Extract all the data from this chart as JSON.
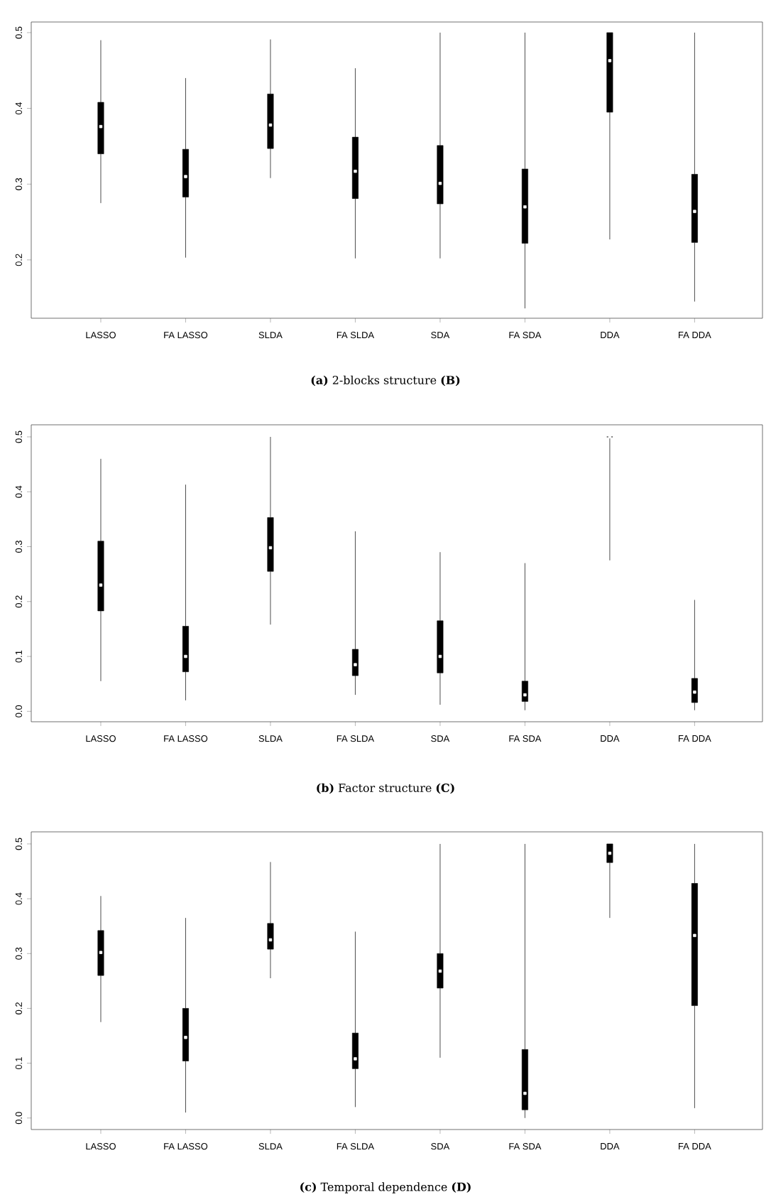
{
  "chart_data": [
    {
      "type": "box",
      "title": "**(a)** 2-blocks structure **(B)**",
      "categories": [
        "LASSO",
        "FA LASSO",
        "SLDA",
        "FA SLDA",
        "SDA",
        "FA SDA",
        "DDA",
        "FA DDA"
      ],
      "ylim": [
        0.123,
        0.514
      ],
      "yticks": [
        0.2,
        0.3,
        0.4,
        0.5
      ],
      "boxes": [
        {
          "low": 0.275,
          "q1": 0.34,
          "median": 0.376,
          "q3": 0.408,
          "high": 0.49
        },
        {
          "low": 0.203,
          "q1": 0.283,
          "median": 0.31,
          "q3": 0.346,
          "high": 0.44
        },
        {
          "low": 0.308,
          "q1": 0.347,
          "median": 0.378,
          "q3": 0.419,
          "high": 0.491
        },
        {
          "low": 0.202,
          "q1": 0.281,
          "median": 0.317,
          "q3": 0.362,
          "high": 0.453
        },
        {
          "low": 0.202,
          "q1": 0.274,
          "median": 0.301,
          "q3": 0.351,
          "high": 0.5
        },
        {
          "low": 0.136,
          "q1": 0.222,
          "median": 0.27,
          "q3": 0.32,
          "high": 0.5
        },
        {
          "low": 0.227,
          "q1": 0.395,
          "median": 0.463,
          "q3": 0.5,
          "high": 0.5
        },
        {
          "low": 0.145,
          "q1": 0.223,
          "median": 0.264,
          "q3": 0.313,
          "high": 0.5
        }
      ]
    },
    {
      "type": "box",
      "title": "**(b)** Factor structure **(C)**",
      "categories": [
        "LASSO",
        "FA LASSO",
        "SLDA",
        "FA SLDA",
        "SDA",
        "FA SDA",
        "DDA",
        "FA DDA"
      ],
      "ylim": [
        -0.019,
        0.522
      ],
      "yticks": [
        {
          "value": 0,
          "label": "0.0"
        },
        0.1,
        0.2,
        0.3,
        0.4,
        0.5
      ],
      "boxes": [
        {
          "low": 0.055,
          "q1": 0.183,
          "median": 0.23,
          "q3": 0.31,
          "high": 0.46
        },
        {
          "low": 0.02,
          "q1": 0.072,
          "median": 0.1,
          "q3": 0.155,
          "high": 0.413
        },
        {
          "low": 0.158,
          "q1": 0.255,
          "median": 0.298,
          "q3": 0.353,
          "high": 0.5
        },
        {
          "low": 0.03,
          "q1": 0.065,
          "median": 0.085,
          "q3": 0.113,
          "high": 0.328
        },
        {
          "low": 0.012,
          "q1": 0.07,
          "median": 0.1,
          "q3": 0.165,
          "high": 0.29
        },
        {
          "low": 0.002,
          "q1": 0.018,
          "median": 0.03,
          "q3": 0.055,
          "high": 0.27
        },
        {
          "low": 0.275,
          "q1": 0.5,
          "median": 0.5,
          "q3": 0.5,
          "high": 0.5
        },
        {
          "low": 0.002,
          "q1": 0.016,
          "median": 0.035,
          "q3": 0.06,
          "high": 0.203
        }
      ]
    },
    {
      "type": "box",
      "title": "**(c)** Temporal dependence **(D)**",
      "categories": [
        "LASSO",
        "FA LASSO",
        "SLDA",
        "FA SLDA",
        "SDA",
        "FA SDA",
        "DDA",
        "FA DDA"
      ],
      "ylim": [
        -0.021,
        0.522
      ],
      "yticks": [
        {
          "value": 0,
          "label": "0.0"
        },
        0.1,
        0.2,
        0.3,
        0.4,
        0.5
      ],
      "boxes": [
        {
          "low": 0.175,
          "q1": 0.26,
          "median": 0.302,
          "q3": 0.342,
          "high": 0.405
        },
        {
          "low": 0.01,
          "q1": 0.104,
          "median": 0.147,
          "q3": 0.2,
          "high": 0.365
        },
        {
          "low": 0.255,
          "q1": 0.308,
          "median": 0.325,
          "q3": 0.355,
          "high": 0.467
        },
        {
          "low": 0.02,
          "q1": 0.09,
          "median": 0.108,
          "q3": 0.155,
          "high": 0.34
        },
        {
          "low": 0.11,
          "q1": 0.237,
          "median": 0.268,
          "q3": 0.3,
          "high": 0.5
        },
        {
          "low": 0.0,
          "q1": 0.015,
          "median": 0.045,
          "q3": 0.125,
          "high": 0.5
        },
        {
          "low": 0.365,
          "q1": 0.466,
          "median": 0.483,
          "q3": 0.5,
          "high": 0.5
        },
        {
          "low": 0.018,
          "q1": 0.205,
          "median": 0.333,
          "q3": 0.428,
          "high": 0.5
        }
      ]
    }
  ]
}
